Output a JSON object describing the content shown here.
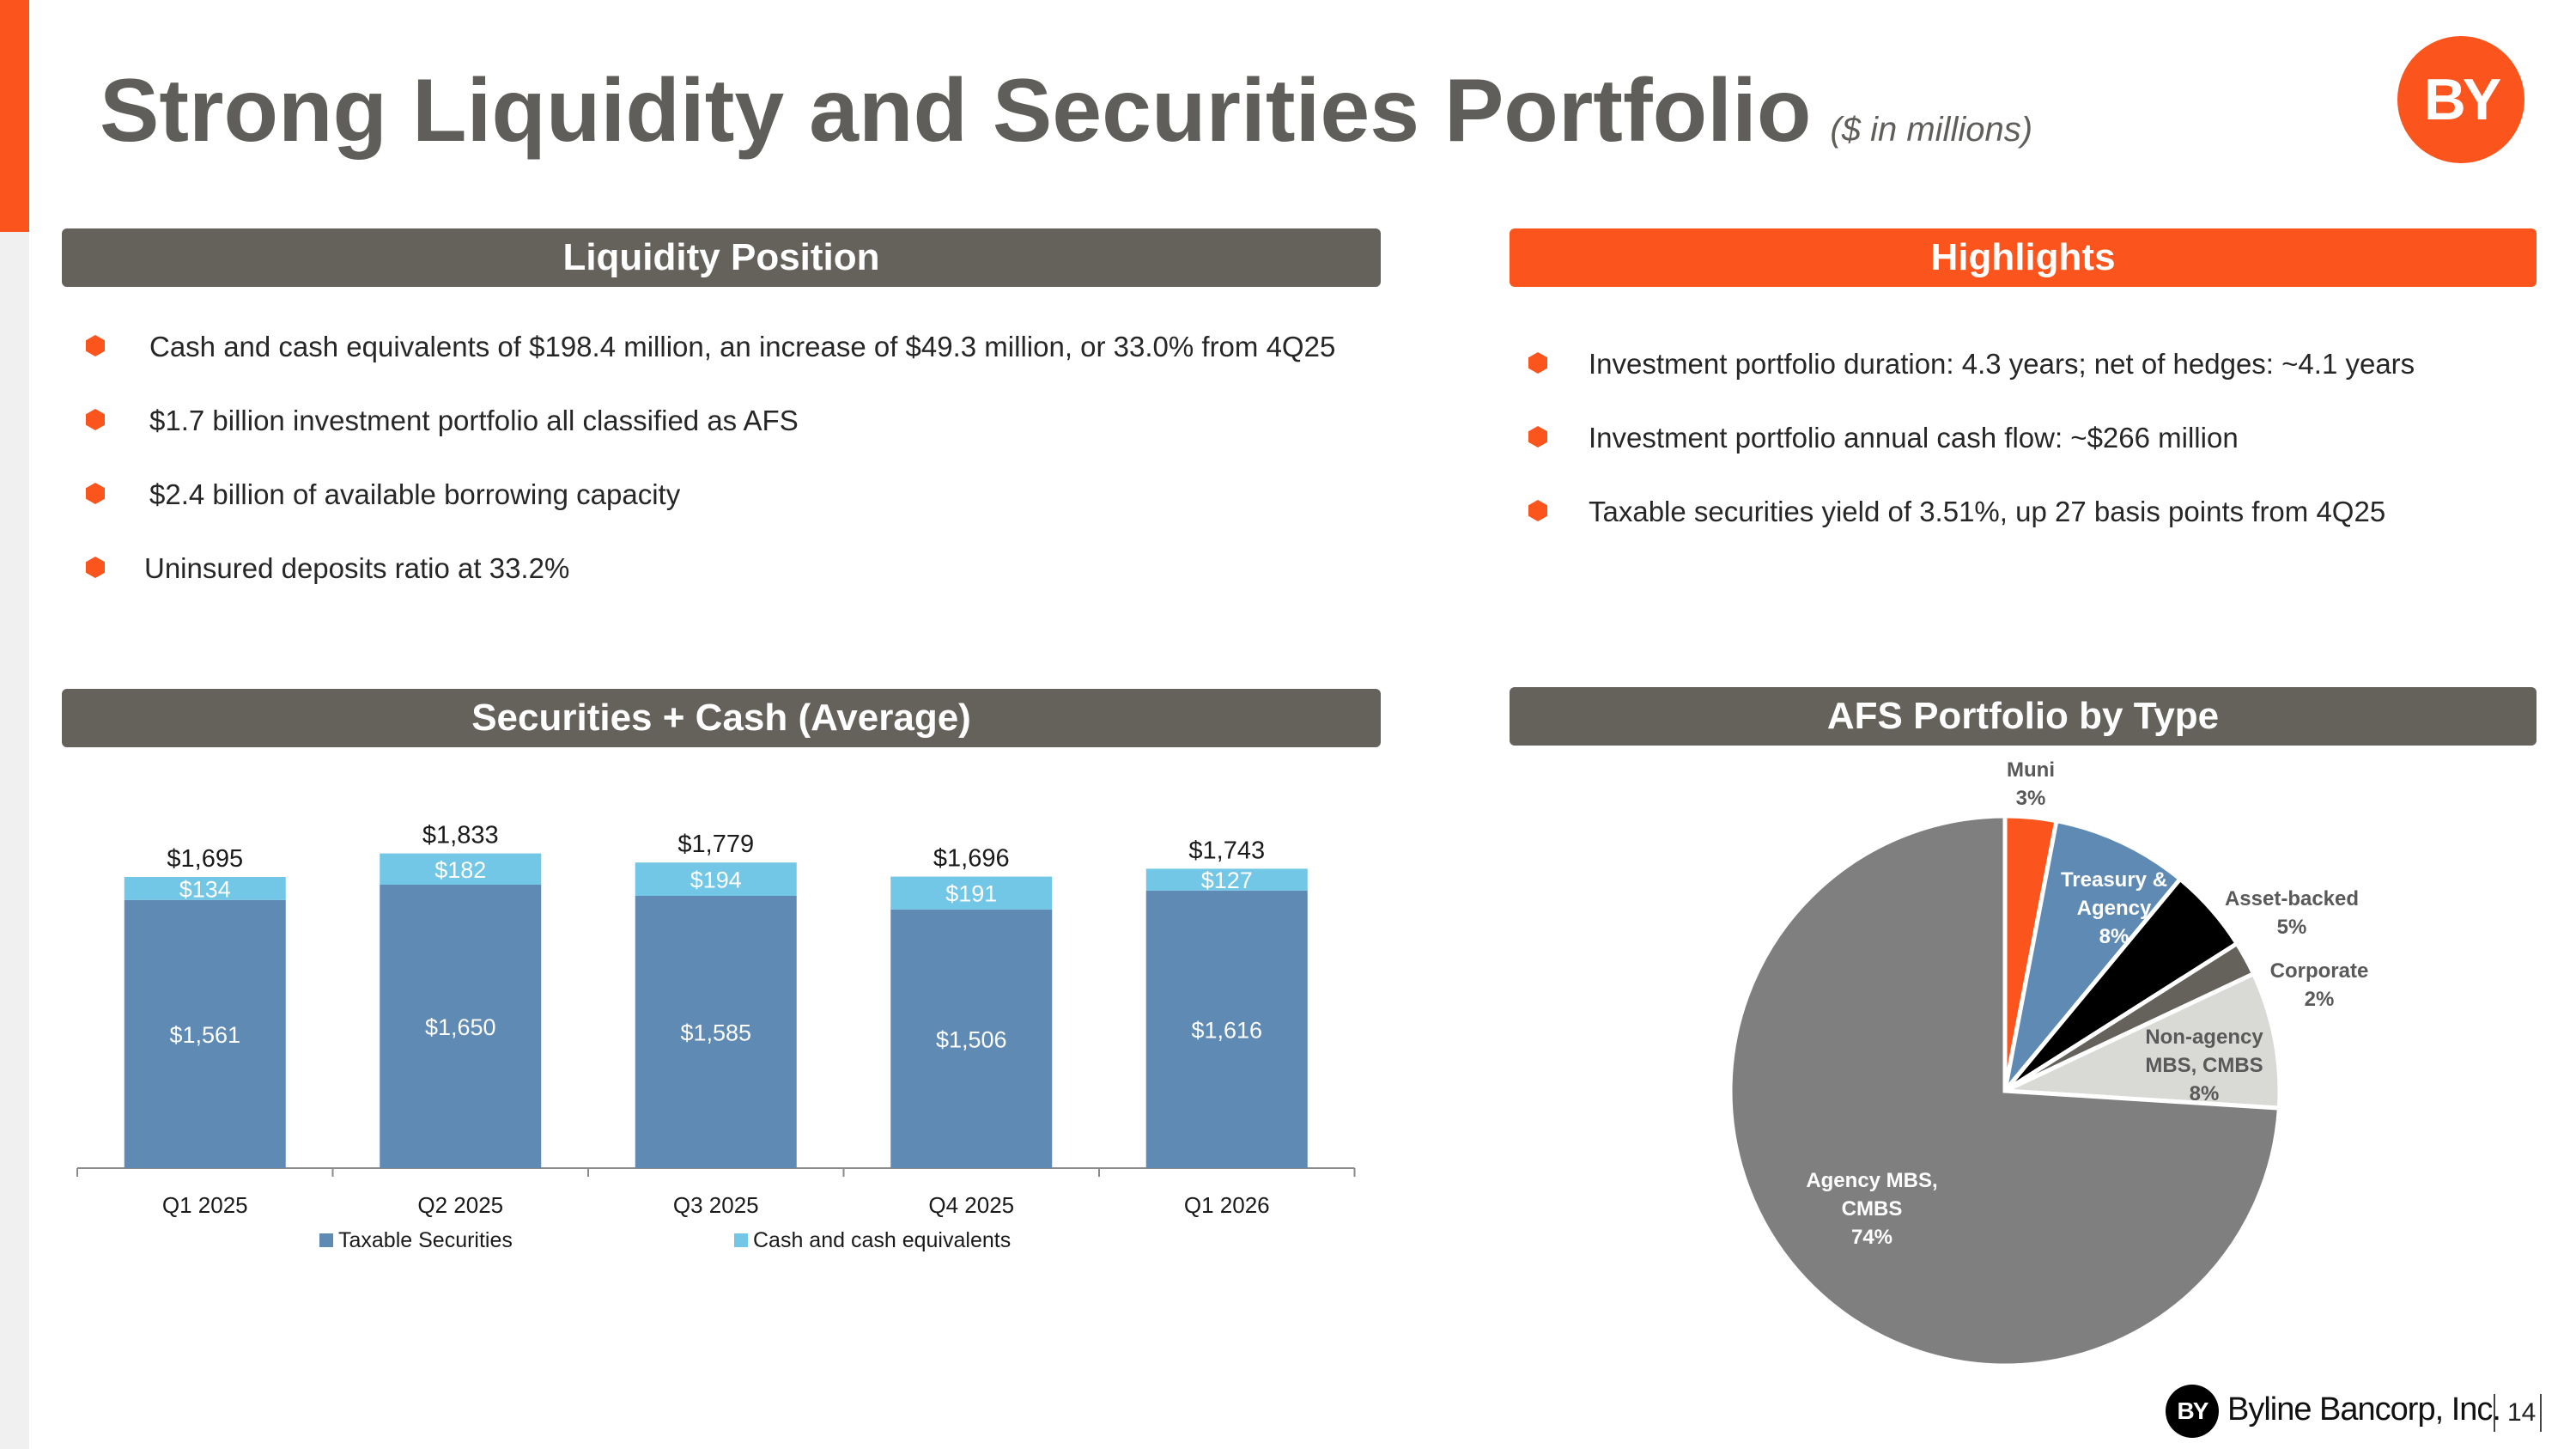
{
  "title": "Strong Liquidity and Securities Portfolio",
  "subtitle": "($ in millions)",
  "logo_text": "BY",
  "sections": {
    "liquidity": {
      "header": "Liquidity Position",
      "bullets": [
        "Cash and cash equivalents of $198.4 million, an increase of $49.3 million, or 33.0% from 4Q25",
        "$1.7 billion investment portfolio all classified as AFS",
        "$2.4 billion of available borrowing capacity",
        "Uninsured deposits ratio at 33.2%"
      ]
    },
    "highlights": {
      "header": "Highlights",
      "bullets": [
        "Investment portfolio duration: 4.3 years; net of hedges: ~4.1 years",
        "Investment portfolio annual cash flow: ~$266 million",
        "Taxable securities yield of 3.51%, up 27 basis points from 4Q25"
      ]
    },
    "securities": {
      "header": "Securities + Cash (Average)"
    },
    "afs": {
      "header": "AFS Portfolio by Type"
    }
  },
  "colors": {
    "accent": "#fb541c",
    "header_gray": "#65615b",
    "taxable": "#5f8ab4",
    "cash": "#72c6e6"
  },
  "chart_data": [
    {
      "type": "bar",
      "stacked": true,
      "categories": [
        "Q1 2025",
        "Q2 2025",
        "Q3 2025",
        "Q4 2025",
        "Q1 2026"
      ],
      "series": [
        {
          "name": "Taxable Securities",
          "values": [
            1561,
            1650,
            1585,
            1506,
            1616
          ],
          "labels": [
            "$1,561",
            "$1,650",
            "$1,585",
            "$1,506",
            "$1,616"
          ],
          "color": "#5f8ab4"
        },
        {
          "name": "Cash and cash equivalents",
          "values": [
            134,
            182,
            194,
            191,
            127
          ],
          "labels": [
            "$134",
            "$182",
            "$194",
            "$191",
            "$127"
          ],
          "color": "#72c6e6"
        }
      ],
      "totals": [
        "$1,695",
        "$1,833",
        "$1,779",
        "$1,696",
        "$1,743"
      ],
      "ylim": [
        0,
        2000
      ],
      "legend": "bottom"
    },
    {
      "type": "pie",
      "slices": [
        {
          "label": "Muni",
          "pct_label": "3%",
          "value": 3,
          "color": "#fb541c"
        },
        {
          "label": "Treasury & Agency",
          "pct_label": "8%",
          "value": 8,
          "color": "#5f8ab4"
        },
        {
          "label": "Asset-backed",
          "pct_label": "5%",
          "value": 5,
          "color": "#000000"
        },
        {
          "label": "Corporate",
          "pct_label": "2%",
          "value": 2,
          "color": "#65615b"
        },
        {
          "label": "Non-agency MBS, CMBS",
          "pct_label": "8%",
          "value": 8,
          "color": "#d9d9d6"
        },
        {
          "label": "Agency MBS, CMBS",
          "pct_label": "74%",
          "value": 74,
          "color": "#7f7f7f"
        }
      ]
    }
  ],
  "footer": {
    "company": "Byline Bancorp, Inc.",
    "page": "14"
  }
}
